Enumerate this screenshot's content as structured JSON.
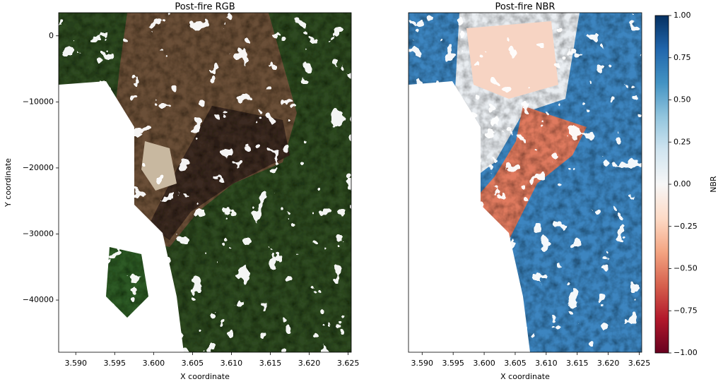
{
  "chart_data": [
    {
      "type": "image",
      "title": "Post-fire RGB",
      "x_label": "X coordinate",
      "y_label": "Y coordinate",
      "xlim": [
        3.5878,
        3.6254
      ],
      "xticks": [
        {
          "value": 3.59,
          "label": "3.590"
        },
        {
          "value": 3.595,
          "label": "3.595"
        },
        {
          "value": 3.6,
          "label": "3.600"
        },
        {
          "value": 3.605,
          "label": "3.605"
        },
        {
          "value": 3.61,
          "label": "3.610"
        },
        {
          "value": 3.615,
          "label": "3.615"
        },
        {
          "value": 3.62,
          "label": "3.620"
        },
        {
          "value": 3.625,
          "label": "3.625"
        }
      ],
      "ylim": [
        -47900,
        3500
      ],
      "yticks": [
        0,
        {
          "value": -10000,
          "label": "−10000"
        },
        {
          "value": -20000,
          "label": "−20000"
        },
        {
          "value": -30000,
          "label": "−30000"
        },
        {
          "value": -40000,
          "label": "−40000"
        }
      ]
    },
    {
      "type": "image",
      "title": "Post-fire NBR",
      "x_label": "X coordinate",
      "xlim": [
        3.5878,
        3.6254
      ],
      "xticks": [
        {
          "value": 3.59,
          "label": "3.590"
        },
        {
          "value": 3.595,
          "label": "3.595"
        },
        {
          "value": 3.6,
          "label": "3.600"
        },
        {
          "value": 3.605,
          "label": "3.605"
        },
        {
          "value": 3.61,
          "label": "3.610"
        },
        {
          "value": 3.615,
          "label": "3.615"
        },
        {
          "value": 3.62,
          "label": "3.620"
        },
        {
          "value": 3.625,
          "label": "3.625"
        }
      ],
      "ylim": [
        -47900,
        3500
      ],
      "colorbar": {
        "label": "NBR",
        "colormap": "RdBu",
        "clim": [
          -1,
          1
        ],
        "ticks": [
          {
            "value": 1,
            "label": "1.00"
          },
          {
            "value": 0.75,
            "label": "0.75"
          },
          {
            "value": 0.5,
            "label": "0.50"
          },
          {
            "value": 0.25,
            "label": "0.25"
          },
          {
            "value": 0,
            "label": "0.00"
          },
          {
            "value": -0.25,
            "label": "−0.25"
          },
          {
            "value": -0.5,
            "label": "−0.50"
          },
          {
            "value": -0.75,
            "label": "−0.75"
          },
          {
            "value": -1,
            "label": "−1.00"
          }
        ]
      }
    }
  ]
}
